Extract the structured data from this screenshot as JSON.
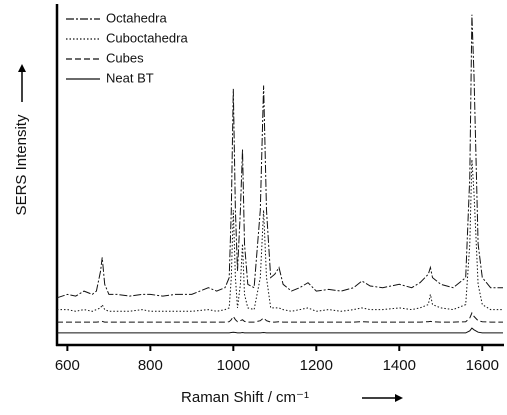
{
  "chart_data": {
    "type": "line",
    "xlabel": "Raman Shift / cm⁻¹",
    "ylabel": "SERS Intensity",
    "xlim": [
      575,
      1650
    ],
    "ylim": [
      0,
      100
    ],
    "xticks": [
      600,
      800,
      1000,
      1200,
      1400,
      1600
    ],
    "x": [
      575,
      600,
      620,
      640,
      660,
      670,
      680,
      684,
      690,
      700,
      720,
      750,
      780,
      800,
      830,
      860,
      900,
      940,
      960,
      980,
      990,
      995,
      1000,
      1005,
      1010,
      1017,
      1022,
      1027,
      1035,
      1050,
      1065,
      1073,
      1080,
      1090,
      1100,
      1110,
      1120,
      1140,
      1160,
      1180,
      1200,
      1230,
      1260,
      1290,
      1310,
      1330,
      1360,
      1400,
      1430,
      1450,
      1470,
      1475,
      1480,
      1500,
      1530,
      1560,
      1570,
      1575,
      1580,
      1590,
      1600,
      1620,
      1650
    ],
    "series": [
      {
        "name": "Octahedra",
        "color": "#111111",
        "dash": "dashdot",
        "values": [
          14,
          15,
          14.5,
          16,
          15,
          16,
          22,
          26,
          18,
          15,
          15,
          14.5,
          15,
          15,
          14.5,
          15,
          15,
          17,
          16,
          17,
          20,
          40,
          76,
          40,
          22,
          40,
          58,
          30,
          18,
          17,
          40,
          77,
          40,
          20,
          21,
          23,
          18,
          16,
          17,
          18.5,
          16,
          16.5,
          16,
          17,
          19,
          17.5,
          17,
          18,
          17,
          18.5,
          21,
          23,
          20,
          18,
          17,
          20,
          50,
          98,
          80,
          30,
          20,
          17,
          17
        ]
      },
      {
        "name": "Cuboctahedra",
        "color": "#111111",
        "dash": "dotted",
        "values": [
          10.5,
          10.5,
          10,
          10.5,
          10,
          10.5,
          11,
          12,
          10.5,
          10,
          10,
          10,
          10.5,
          10,
          10,
          10,
          10,
          10.5,
          10,
          10.5,
          11,
          20,
          40,
          20,
          11,
          18,
          30,
          15,
          11,
          10.5,
          20,
          40,
          20,
          11,
          11,
          11,
          10.5,
          10,
          10.5,
          11,
          10,
          10.5,
          10,
          10.5,
          11,
          10.5,
          10.5,
          11,
          10.5,
          11,
          12,
          15,
          12,
          11,
          10.5,
          12,
          30,
          55,
          45,
          18,
          12,
          10.5,
          10.5
        ]
      },
      {
        "name": "Cubes",
        "color": "#111111",
        "dash": "dashed",
        "values": [
          6.8,
          6.8,
          6.8,
          6.8,
          6.8,
          6.8,
          6.9,
          7,
          6.8,
          6.8,
          6.8,
          6.8,
          6.8,
          6.8,
          6.8,
          6.8,
          6.8,
          6.8,
          6.8,
          6.8,
          6.9,
          7.5,
          8.5,
          7.5,
          6.9,
          7.2,
          7.5,
          7,
          6.8,
          6.8,
          7.2,
          8,
          7.2,
          6.8,
          6.8,
          6.9,
          6.8,
          6.8,
          6.8,
          6.8,
          6.8,
          6.8,
          6.8,
          6.8,
          6.9,
          6.8,
          6.8,
          6.8,
          6.8,
          6.8,
          6.9,
          7,
          6.9,
          6.8,
          6.8,
          6.9,
          8,
          9.5,
          8.5,
          7.2,
          6.9,
          6.8,
          6.8
        ]
      },
      {
        "name": "Neat BT",
        "color": "#111111",
        "dash": "solid",
        "values": [
          3.6,
          3.6,
          3.6,
          3.6,
          3.6,
          3.6,
          3.6,
          3.6,
          3.6,
          3.6,
          3.6,
          3.6,
          3.6,
          3.6,
          3.6,
          3.6,
          3.6,
          3.6,
          3.6,
          3.6,
          3.6,
          3.7,
          3.8,
          3.7,
          3.6,
          3.6,
          3.7,
          3.6,
          3.6,
          3.6,
          3.6,
          3.7,
          3.6,
          3.6,
          3.6,
          3.6,
          3.6,
          3.6,
          3.6,
          3.6,
          3.6,
          3.6,
          3.6,
          3.6,
          3.6,
          3.6,
          3.6,
          3.6,
          3.6,
          3.6,
          3.6,
          3.6,
          3.6,
          3.6,
          3.6,
          3.6,
          4.2,
          5,
          4.5,
          3.8,
          3.6,
          3.6,
          3.6
        ]
      }
    ]
  }
}
